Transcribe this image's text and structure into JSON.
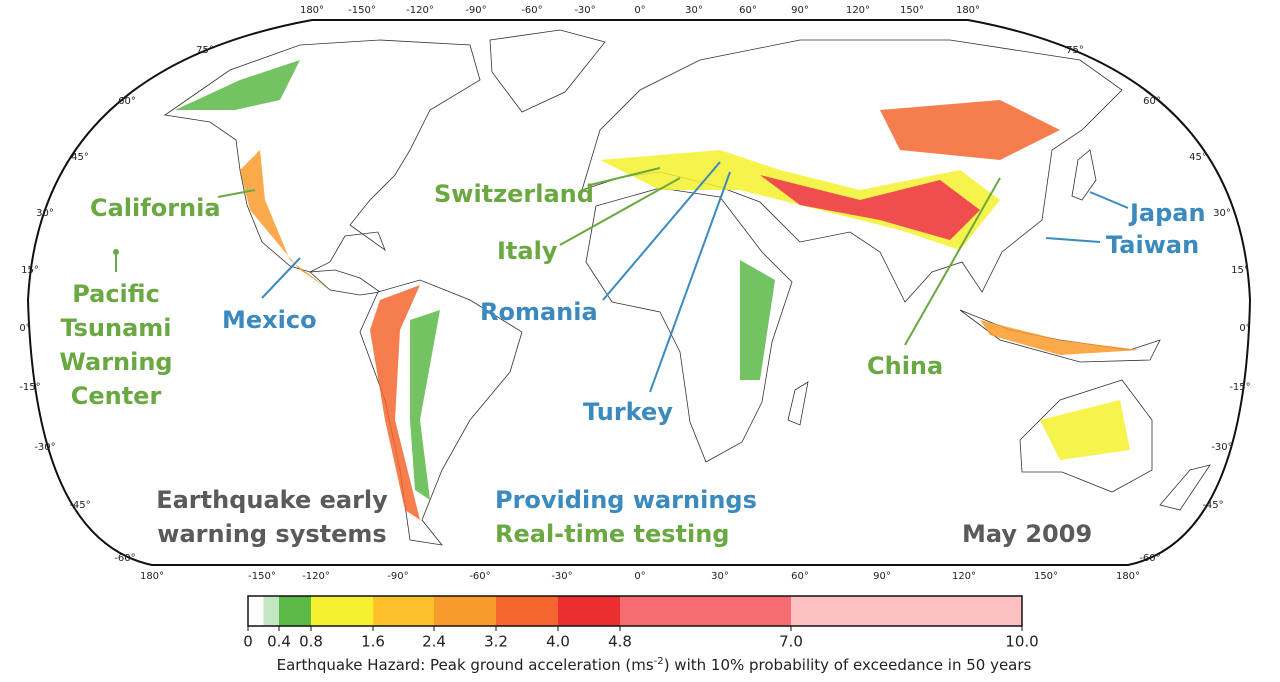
{
  "map": {
    "lon_labels_top": [
      "180°",
      "-150°",
      "-120°",
      "-90°",
      "-60°",
      "-30°",
      "0°",
      "30°",
      "60°",
      "90°",
      "120°",
      "150°",
      "180°"
    ],
    "lon_labels_bottom": [
      "180°",
      "-150°",
      "-120°",
      "-90°",
      "-60°",
      "-30°",
      "0°",
      "30°",
      "60°",
      "90°",
      "120°",
      "150°",
      "180°"
    ],
    "lat_labels_left": [
      "75°",
      "60°",
      "45°",
      "30°",
      "15°",
      "0°",
      "-15°",
      "-30°",
      "-45°",
      "-60°"
    ],
    "lat_labels_right": [
      "75°",
      "60°",
      "45°",
      "30°",
      "15°",
      "0°",
      "-15°",
      "-30°",
      "-45°",
      "-60°"
    ],
    "annotations": {
      "california": "California",
      "pacific": [
        "Pacific",
        "Tsunami",
        "Warning",
        "Center"
      ],
      "mexico": "Mexico",
      "switzerland": "Switzerland",
      "italy": "Italy",
      "romania": "Romania",
      "turkey": "Turkey",
      "china": "China",
      "japan": "Japan",
      "taiwan": "Taiwan"
    },
    "legend": {
      "title": [
        "Earthquake early",
        "warning systems"
      ],
      "providing": "Providing warnings",
      "testing": "Real-time testing"
    },
    "date": "May 2009"
  },
  "colorbar": {
    "lim": [
      0,
      10
    ],
    "ticks": [
      0,
      0.4,
      0.8,
      1.6,
      2.4,
      3.2,
      {
        "value": 4,
        "label": "4.0"
      },
      4.8,
      {
        "value": 7,
        "label": "7.0"
      },
      {
        "value": 10,
        "label": "10.0"
      }
    ],
    "colors": [
      "#ffffff",
      "#c4e6c3",
      "#5bb947",
      "#f5f12e",
      "#fdc12b",
      "#f99b2c",
      "#f5672f",
      "#ed2e30",
      "#f76c70",
      "#fdc0c2"
    ]
  },
  "caption": {
    "before": "Earthquake Hazard: Peak ground acceleration (ms",
    "sup": "-2",
    "after": ") with 10% probability of exceedance in 50 years"
  }
}
